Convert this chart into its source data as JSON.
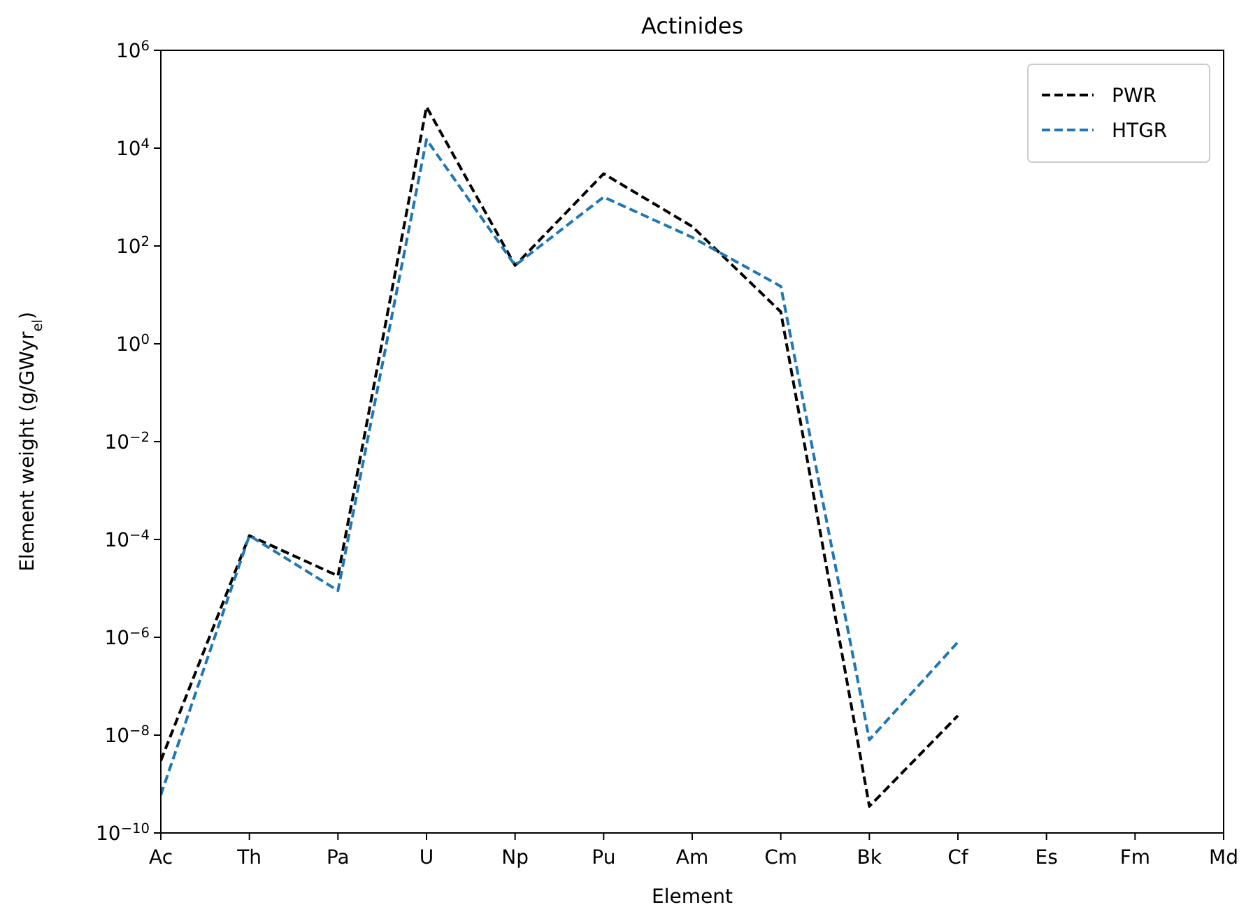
{
  "chart_data": {
    "type": "line",
    "title": "Actinides",
    "xlabel": "Element",
    "ylabel": "Element weight (g/GWyr$_{el}$)",
    "categories": [
      "Ac",
      "Th",
      "Pa",
      "U",
      "Np",
      "Pu",
      "Am",
      "Cm",
      "Bk",
      "Cf",
      "Es",
      "Fm",
      "Md"
    ],
    "series": [
      {
        "name": "PWR",
        "color": "#000000",
        "values": [
          3e-09,
          0.00012,
          1.8e-05,
          70000.0,
          40,
          3000,
          250,
          4.5,
          3.5e-10,
          2.5e-08,
          null,
          null,
          null
        ]
      },
      {
        "name": "HTGR",
        "color": "#1f77b4",
        "values": [
          6e-10,
          0.00012,
          9e-06,
          15000.0,
          40,
          1000,
          150,
          15,
          8e-09,
          8e-07,
          null,
          null,
          null
        ]
      }
    ],
    "log": "y",
    "ylim": [
      1e-10,
      1000000.0
    ],
    "yticks": [
      {
        "value": 1e-10,
        "label": "10$^{−10}$"
      },
      {
        "value": 1e-08,
        "label": "10$^{−8}$"
      },
      {
        "value": 1e-06,
        "label": "10$^{−6}$"
      },
      {
        "value": 0.0001,
        "label": "10$^{−4}$"
      },
      {
        "value": 0.01,
        "label": "10$^{−2}$"
      },
      {
        "value": 1,
        "label": "10$^{0}$"
      },
      {
        "value": 100,
        "label": "10$^{2}$"
      },
      {
        "value": 10000,
        "label": "10$^{4}$"
      },
      {
        "value": 1000000,
        "label": "10$^{6}$"
      }
    ],
    "line_style": "dashed",
    "legend": "top right",
    "grid": false
  }
}
